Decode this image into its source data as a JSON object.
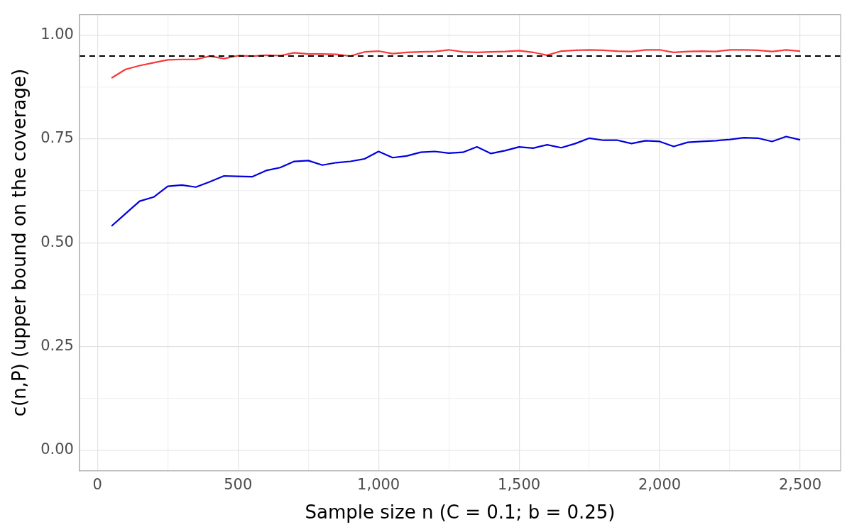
{
  "chart_data": {
    "type": "line",
    "xlabel": "Sample size n (C = 0.1; b = 0.25)",
    "ylabel": "c(n,P) (upper bound on the coverage)",
    "x": [
      50,
      100,
      150,
      200,
      250,
      300,
      350,
      400,
      450,
      500,
      550,
      600,
      650,
      700,
      750,
      800,
      850,
      900,
      950,
      1000,
      1050,
      1100,
      1150,
      1200,
      1250,
      1300,
      1350,
      1400,
      1450,
      1500,
      1550,
      1600,
      1650,
      1700,
      1750,
      1800,
      1850,
      1900,
      1950,
      2000,
      2050,
      2100,
      2150,
      2200,
      2250,
      2300,
      2350,
      2400,
      2450,
      2500
    ],
    "series": [
      {
        "color": "#f8383b",
        "values": [
          0.897,
          0.918,
          0.927,
          0.934,
          0.941,
          0.942,
          0.942,
          0.95,
          0.944,
          0.951,
          0.95,
          0.952,
          0.951,
          0.958,
          0.955,
          0.955,
          0.954,
          0.95,
          0.96,
          0.962,
          0.956,
          0.959,
          0.96,
          0.961,
          0.965,
          0.96,
          0.959,
          0.96,
          0.961,
          0.963,
          0.959,
          0.952,
          0.962,
          0.964,
          0.965,
          0.964,
          0.962,
          0.961,
          0.965,
          0.965,
          0.959,
          0.961,
          0.962,
          0.961,
          0.965,
          0.965,
          0.964,
          0.961,
          0.965,
          0.962
        ]
      },
      {
        "color": "#0000e0",
        "values": [
          0.54,
          0.57,
          0.6,
          0.61,
          0.636,
          0.639,
          0.634,
          0.647,
          0.661,
          0.66,
          0.659,
          0.674,
          0.681,
          0.696,
          0.698,
          0.687,
          0.693,
          0.696,
          0.702,
          0.72,
          0.705,
          0.709,
          0.718,
          0.72,
          0.716,
          0.718,
          0.731,
          0.715,
          0.722,
          0.731,
          0.728,
          0.736,
          0.729,
          0.739,
          0.752,
          0.747,
          0.747,
          0.739,
          0.746,
          0.744,
          0.732,
          0.742,
          0.744,
          0.746,
          0.749,
          0.753,
          0.752,
          0.744,
          0.756,
          0.748
        ]
      }
    ],
    "xlim": [
      -64,
      2644
    ],
    "ylim": [
      -0.05,
      1.05
    ],
    "xticks": [
      0,
      {
        "value": 250,
        "label": null
      },
      500,
      {
        "value": 750,
        "label": null
      },
      {
        "value": 1000,
        "label": "1,000"
      },
      {
        "value": 1250,
        "label": null
      },
      {
        "value": 1500,
        "label": "1,500"
      },
      {
        "value": 1750,
        "label": null
      },
      {
        "value": 2000,
        "label": "2,000"
      },
      {
        "value": 2250,
        "label": null
      },
      {
        "value": 2500,
        "label": "2,500"
      }
    ],
    "yticks": [
      {
        "value": 0,
        "label": "0.00"
      },
      {
        "value": 0.125,
        "label": null
      },
      {
        "value": 0.25,
        "label": "0.25"
      },
      {
        "value": 0.375,
        "label": null
      },
      {
        "value": 0.5,
        "label": "0.50"
      },
      {
        "value": 0.625,
        "label": null
      },
      {
        "value": 0.75,
        "label": "0.75"
      },
      {
        "value": 0.875,
        "label": null
      },
      {
        "value": 1,
        "label": "1.00"
      }
    ],
    "ref_lines": [
      {
        "axis": "y",
        "value": 0.95,
        "color": "#000000",
        "line_style": "dashed"
      }
    ],
    "grid": true,
    "legend": false,
    "marker": "none",
    "line_style": "solid"
  }
}
